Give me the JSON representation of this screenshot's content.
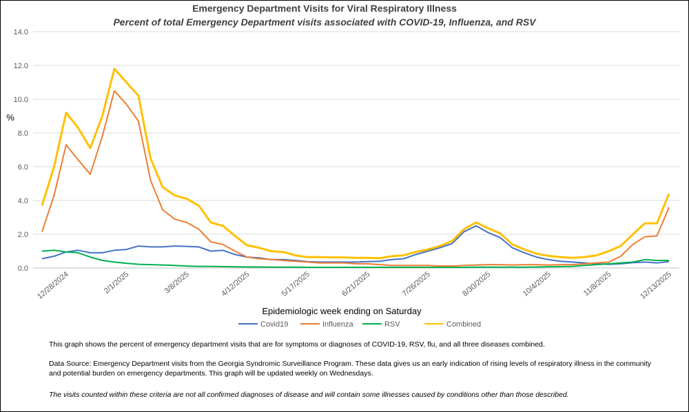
{
  "chart_data": {
    "type": "line",
    "title": "Emergency Department Visits for Viral Respiratory Illness",
    "subtitle": "Percent of total Emergency Department visits associated with COVID-19, Influenza, and RSV",
    "y_label": "%",
    "x_label": "Epidemiologic  week ending on Saturday",
    "categories": [
      null,
      null,
      "12/28/2024",
      null,
      null,
      null,
      null,
      "2/1/2025",
      null,
      null,
      null,
      null,
      "3/8/2025",
      null,
      null,
      null,
      null,
      "4/12/2025",
      null,
      null,
      null,
      null,
      "5/17/2025",
      null,
      null,
      null,
      null,
      "6/21/2025",
      null,
      null,
      null,
      null,
      "7/26/2025",
      null,
      null,
      null,
      null,
      "8/30/2025",
      null,
      null,
      null,
      null,
      "10/4/2025",
      null,
      null,
      null,
      null,
      "11/8/2025",
      null,
      null,
      null,
      null,
      "12/13/2025"
    ],
    "series": [
      {
        "name": "Covid19",
        "color": "#4472c4",
        "values": [
          0.55,
          0.7,
          0.95,
          1.05,
          0.9,
          0.9,
          1.05,
          1.1,
          1.3,
          1.25,
          1.25,
          1.3,
          1.28,
          1.25,
          1.0,
          1.05,
          0.8,
          0.65,
          0.6,
          0.5,
          0.5,
          0.45,
          0.38,
          0.35,
          0.35,
          0.35,
          0.35,
          0.38,
          0.4,
          0.5,
          0.55,
          0.8,
          1.0,
          1.2,
          1.45,
          2.15,
          2.5,
          2.1,
          1.8,
          1.2,
          0.9,
          0.65,
          0.5,
          0.4,
          0.35,
          0.3,
          0.25,
          0.22,
          0.25,
          0.32,
          0.35,
          0.3,
          0.38
        ]
      },
      {
        "name": "Influenza",
        "color": "#ed7d31",
        "values": [
          2.15,
          4.3,
          7.3,
          6.4,
          5.55,
          7.8,
          10.5,
          9.7,
          8.7,
          5.2,
          3.45,
          2.9,
          2.7,
          2.3,
          1.55,
          1.4,
          1.0,
          0.65,
          0.55,
          0.5,
          0.45,
          0.4,
          0.35,
          0.3,
          0.3,
          0.3,
          0.25,
          0.25,
          0.2,
          0.15,
          0.15,
          0.15,
          0.15,
          0.12,
          0.12,
          0.15,
          0.18,
          0.2,
          0.2,
          0.18,
          0.2,
          0.2,
          0.18,
          0.2,
          0.2,
          0.25,
          0.3,
          0.35,
          0.7,
          1.4,
          1.85,
          1.9,
          3.6
        ]
      },
      {
        "name": "RSV",
        "color": "#00b050",
        "values": [
          1.0,
          1.05,
          0.95,
          0.9,
          0.65,
          0.45,
          0.35,
          0.28,
          0.22,
          0.2,
          0.18,
          0.15,
          0.12,
          0.1,
          0.1,
          0.08,
          0.07,
          0.06,
          0.06,
          0.05,
          0.05,
          0.05,
          0.04,
          0.04,
          0.04,
          0.04,
          0.04,
          0.04,
          0.04,
          0.04,
          0.04,
          0.04,
          0.04,
          0.04,
          0.04,
          0.04,
          0.05,
          0.05,
          0.05,
          0.05,
          0.05,
          0.06,
          0.07,
          0.08,
          0.1,
          0.15,
          0.2,
          0.25,
          0.3,
          0.35,
          0.5,
          0.45,
          0.45
        ]
      },
      {
        "name": "Combined",
        "color": "#ffc000",
        "values": [
          3.7,
          6.0,
          9.2,
          8.3,
          7.1,
          9.0,
          11.8,
          11.0,
          10.2,
          6.5,
          4.8,
          4.3,
          4.1,
          3.7,
          2.7,
          2.5,
          1.9,
          1.35,
          1.2,
          1.0,
          0.95,
          0.75,
          0.65,
          0.65,
          0.63,
          0.63,
          0.6,
          0.6,
          0.58,
          0.7,
          0.75,
          0.95,
          1.1,
          1.3,
          1.6,
          2.3,
          2.7,
          2.35,
          2.05,
          1.4,
          1.1,
          0.85,
          0.72,
          0.65,
          0.6,
          0.65,
          0.75,
          1.0,
          1.3,
          2.0,
          2.65,
          2.65,
          4.4
        ]
      }
    ],
    "ylim": [
      0,
      14
    ],
    "yticks": [
      {
        "value": 0,
        "label": "0.0"
      },
      {
        "value": 2,
        "label": "2.0"
      },
      {
        "value": 4,
        "label": "4.0"
      },
      {
        "value": 6,
        "label": "6.0"
      },
      {
        "value": 8,
        "label": "8.0"
      },
      {
        "value": 10,
        "label": "10.0"
      },
      {
        "value": 12,
        "label": "12.0"
      },
      {
        "value": 14,
        "label": "14.0"
      }
    ],
    "grid": true
  },
  "notes": [
    "This graph shows the percent of emergency department visits that are for symptoms or diagnoses of COVID-19, RSV, flu, and all three diseases combined.",
    "Data Source: Emergency Department visits from the Georgia Syndromic Surveillance Program. These data gives us an early indication of rising levels of respiratory illness in the community and potential burden on emergency departments. This graph will be updated weekly on Wednesdays.",
    "The visits counted within these criteria are not all confirmed diagnoses of disease and will contain some illnesses caused by conditions other than those described."
  ]
}
